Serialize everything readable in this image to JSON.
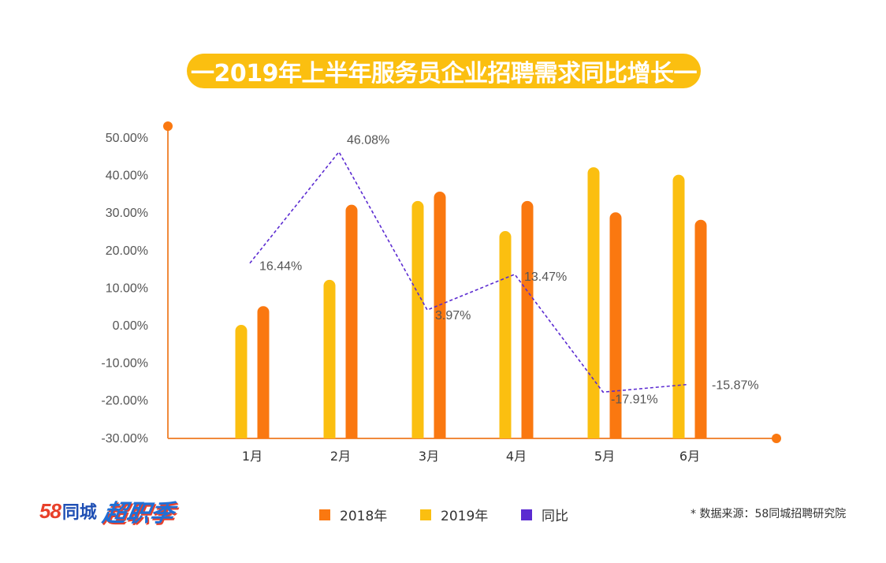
{
  "colors": {
    "accent": "#fbbf10",
    "series_2018": "#fa7810",
    "series_2019": "#fbbf10",
    "series_yoy": "#5b2bd1",
    "axis": "#f08a3c",
    "text": "#555555"
  },
  "title": "一2019年上半年服务员企业招聘需求同比增长一",
  "logo": {
    "brand": "58",
    "brand_suffix": "同城",
    "campaign": "超职季",
    "icon": "58-tongcheng-logo-icon"
  },
  "legend": [
    {
      "label": "2018年",
      "color_key": "series_2018"
    },
    {
      "label": "2019年",
      "color_key": "series_2019"
    },
    {
      "label": "同比",
      "color_key": "series_yoy"
    }
  ],
  "source_note": "* 数据来源：58同城招聘研究院",
  "chart_data": {
    "type": "bar",
    "title": "一2019年上半年服务员企业招聘需求同比增长一",
    "categories": [
      "1月",
      "2月",
      "3月",
      "4月",
      "5月",
      "6月"
    ],
    "ylim": [
      -30,
      50
    ],
    "yticks": [
      50,
      40,
      30,
      20,
      10,
      0,
      -10,
      -20,
      -30
    ],
    "ytick_labels": [
      "50.00%",
      "40.00%",
      "30.00%",
      "20.00%",
      "10.00%",
      "0.00%",
      "-10.00%",
      "-20.00%",
      "-30.00%"
    ],
    "series": [
      {
        "name": "2019年",
        "kind": "bar",
        "color_key": "series_2019",
        "values": [
          0,
          12,
          33,
          25,
          42,
          40
        ]
      },
      {
        "name": "2018年",
        "kind": "bar",
        "color_key": "series_2018",
        "values": [
          5,
          32,
          35.5,
          33,
          30,
          28
        ]
      },
      {
        "name": "同比",
        "kind": "line",
        "style": "dashed",
        "color_key": "series_yoy",
        "values": [
          16.44,
          46.08,
          3.97,
          13.47,
          -17.91,
          -15.87
        ],
        "labels": [
          "16.44%",
          "46.08%",
          "3.97%",
          "13.47%",
          "-17.91%",
          "-15.87%"
        ]
      }
    ],
    "grid": false,
    "legend_position": "bottom"
  }
}
